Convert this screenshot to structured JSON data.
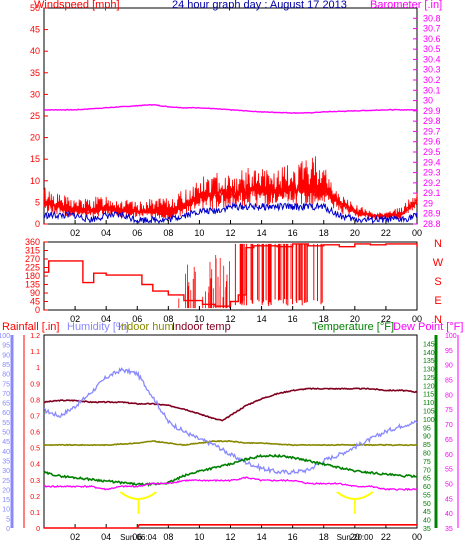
{
  "header": {
    "left": "Windspeed [mph]",
    "center": "24 hour graph day : August 17 2013",
    "right": "Barometer [.in]"
  },
  "colors": {
    "wind": "#ff0000",
    "gust": "#ff0000",
    "avg": "#0000cc",
    "baro": "#ff00ff",
    "dir": "#ff0000",
    "rain": "#ff0000",
    "hum": "#8888ff",
    "inhum": "#888800",
    "intemp": "#800020",
    "temp": "#008000",
    "dew": "#ff00ff",
    "sun": "#ffff00"
  },
  "chart_data": [
    {
      "type": "line",
      "name": "wind-barometer",
      "x_ticks": [
        "02",
        "04",
        "06",
        "08",
        "10",
        "12",
        "14",
        "16",
        "18",
        "20",
        "22",
        "00"
      ],
      "ylabel_left": "Windspeed [mph]",
      "ylim_left": [
        0,
        50
      ],
      "yticks_left": [
        0,
        5,
        10,
        15,
        20,
        25,
        30,
        35,
        40,
        45,
        50
      ],
      "ylabel_right": "Barometer [.in]",
      "ylim_right": [
        28.8,
        30.9
      ],
      "yticks_right": [
        "28.8",
        "28.9",
        "29",
        "29.1",
        "29.2",
        "29.3",
        "29.4",
        "29.5",
        "29.6",
        "29.7",
        "29.8",
        "29.9",
        "30",
        "30.1",
        "30.2",
        "30.3",
        "30.4",
        "30.5",
        "30.6",
        "30.7",
        "30.8"
      ],
      "barometer": {
        "x": [
          0,
          2,
          4,
          6,
          7,
          8,
          9,
          10,
          12,
          14,
          16,
          17,
          18,
          20,
          22,
          24
        ],
        "y": [
          29.91,
          29.91,
          29.93,
          29.95,
          29.96,
          29.94,
          29.93,
          29.93,
          29.91,
          29.89,
          29.88,
          29.88,
          29.89,
          29.9,
          29.91,
          29.91
        ]
      },
      "wind_gust_envelope": {
        "x": [
          0,
          1,
          2,
          3,
          4,
          5,
          6,
          7,
          8,
          9,
          10,
          11,
          12,
          13,
          14,
          15,
          16,
          17,
          17.5,
          18,
          19,
          20,
          21,
          22,
          23,
          24
        ],
        "y": [
          9,
          7,
          6,
          6,
          7,
          6,
          5,
          6,
          6,
          8,
          11,
          12,
          12,
          13,
          13,
          13,
          14,
          15,
          17,
          14,
          7,
          5,
          3,
          3,
          4,
          8
        ]
      },
      "wind_sustained": {
        "x": [
          0,
          1,
          2,
          3,
          4,
          5,
          6,
          7,
          8,
          9,
          10,
          11,
          12,
          13,
          14,
          15,
          16,
          17,
          18,
          19,
          20,
          21,
          22,
          23,
          24
        ],
        "y": [
          5,
          4,
          3,
          3,
          4,
          3,
          3,
          3,
          2,
          4,
          6,
          7,
          7,
          8,
          8,
          7,
          8,
          8,
          8,
          5,
          3,
          2,
          2,
          2,
          6
        ]
      },
      "wind_average": {
        "x": [
          0,
          1,
          2,
          3,
          4,
          5,
          6,
          7,
          8,
          9,
          10,
          11,
          12,
          13,
          14,
          15,
          16,
          17,
          18,
          19,
          20,
          21,
          22,
          23,
          24
        ],
        "y": [
          2,
          2,
          2,
          1,
          2,
          2,
          1,
          1,
          1,
          2,
          3,
          3,
          4,
          4,
          4,
          4,
          4,
          4,
          4,
          2,
          1,
          1,
          1,
          1,
          2
        ]
      }
    },
    {
      "type": "line",
      "name": "wind-direction",
      "ylim": [
        0,
        360
      ],
      "yticks": [
        0,
        45,
        90,
        135,
        180,
        225,
        270,
        315,
        360
      ],
      "compass": [
        "N",
        "W",
        "S",
        "E",
        "N"
      ],
      "x_ticks": [
        "02",
        "04",
        "06",
        "08",
        "10",
        "12",
        "14",
        "16",
        "18",
        "20",
        "22",
        "00"
      ],
      "direction": {
        "x": [
          0,
          0.3,
          0.8,
          2.4,
          2.5,
          3.1,
          3.2,
          3.9,
          4.0,
          6.2,
          6.3,
          6.8,
          7.0,
          8.0,
          9.0,
          10.2,
          11.0,
          11.6,
          12.0,
          12.5,
          13.0,
          13.5,
          14.0,
          15.0,
          16.0,
          17.0,
          18.0,
          19.0,
          20.0,
          21.0,
          22.0,
          23.0,
          24.0
        ],
        "y": [
          200,
          260,
          260,
          260,
          145,
          145,
          195,
          195,
          185,
          185,
          135,
          135,
          100,
          80,
          50,
          30,
          20,
          20,
          45,
          80,
          330,
          340,
          340,
          335,
          350,
          340,
          345,
          335,
          350,
          345,
          350,
          350,
          335
        ]
      }
    },
    {
      "type": "line",
      "name": "rain-humidity-temperature",
      "legend": [
        "Rainfall [.in]",
        "Humidity [%]",
        "Indoor hum",
        "Indoor temp",
        "Temperature [°F]",
        "Dew Point [°F]"
      ],
      "x_ticks": [
        "02",
        "04",
        "06",
        "08",
        "10",
        "12",
        "14",
        "16",
        "18",
        "20",
        "22",
        "00"
      ],
      "sun_labels": [
        "Sun 06:04",
        "Sun 20:00"
      ],
      "ylim_rain": [
        0,
        1.2
      ],
      "yticks_rain": [
        "0",
        "0.1",
        "0.2",
        "0.3",
        "0.4",
        "0.5",
        "0.6",
        "0.7",
        "0.8",
        "0.9",
        "1",
        "1.1",
        "1.2"
      ],
      "ylim_hum": [
        0,
        100
      ],
      "yticks_hum": [
        0,
        5,
        10,
        15,
        20,
        25,
        30,
        35,
        40,
        45,
        50,
        55,
        60,
        65,
        70,
        75,
        80,
        85,
        90,
        95,
        100
      ],
      "ylim_temp": [
        35,
        150
      ],
      "yticks_temp": [
        35,
        40,
        45,
        50,
        55,
        60,
        65,
        70,
        75,
        80,
        85,
        90,
        95,
        100,
        105,
        110,
        115,
        120,
        125,
        130,
        135,
        140,
        145
      ],
      "ylim_dew": [
        35,
        100
      ],
      "yticks_dew": [
        35,
        40,
        45,
        50,
        55,
        60,
        65,
        70,
        75,
        80,
        85,
        90,
        95,
        100
      ],
      "humidity": {
        "x": [
          0,
          1,
          2,
          3,
          4,
          5,
          6,
          7,
          8,
          9,
          10,
          11,
          12,
          13,
          14,
          15,
          16,
          17,
          18,
          19,
          20,
          21,
          22,
          23,
          24
        ],
        "y": [
          61,
          58,
          63,
          70,
          78,
          82,
          80,
          68,
          55,
          50,
          46,
          43,
          38,
          34,
          31,
          29,
          29,
          30,
          35,
          38,
          42,
          46,
          50,
          53,
          55
        ]
      },
      "indoor_hum": {
        "x": [
          0,
          2,
          4,
          6,
          7,
          8,
          9,
          10,
          11,
          12,
          13,
          14,
          16,
          18,
          20,
          22,
          24
        ],
        "y": [
          43,
          43,
          43,
          44,
          45,
          44,
          43,
          44,
          45,
          45,
          44,
          44,
          43,
          43,
          43,
          43,
          43
        ]
      },
      "indoor_temp": {
        "x": [
          0,
          1,
          2,
          3,
          4,
          5,
          6,
          7,
          8,
          9,
          10,
          11,
          11.5,
          12,
          13,
          14,
          15,
          16,
          17,
          18,
          19,
          20,
          21,
          22,
          23,
          24
        ],
        "y": [
          110,
          111,
          111,
          110,
          110,
          110,
          109,
          109,
          108,
          106,
          103,
          100,
          99,
          102,
          108,
          112,
          115,
          117,
          118,
          118,
          118,
          118,
          118,
          117,
          117,
          116
        ]
      },
      "temperature": {
        "x": [
          0,
          1,
          2,
          3,
          4,
          5,
          6,
          7,
          8,
          9,
          10,
          11,
          12,
          13,
          14,
          15,
          16,
          17,
          18,
          19,
          20,
          21,
          22,
          23,
          24
        ],
        "y": [
          68,
          66,
          65,
          64,
          63,
          62,
          61,
          61,
          62,
          66,
          69,
          71,
          73,
          76,
          78,
          78,
          77,
          75,
          73,
          71,
          69,
          68,
          67,
          66,
          66
        ]
      },
      "dew_point": {
        "x": [
          0,
          1,
          2,
          3,
          4,
          5,
          6,
          7,
          8,
          9,
          10,
          11,
          12,
          13,
          14,
          15,
          16,
          17,
          18,
          19,
          20,
          21,
          22,
          23,
          24
        ],
        "y": [
          49,
          49,
          49,
          49,
          48,
          49,
          49,
          50,
          50,
          51,
          51,
          51,
          51,
          52,
          51,
          51,
          51,
          50,
          50,
          50,
          49,
          49,
          48,
          48,
          48
        ]
      },
      "rainfall": {
        "x": [
          0,
          6,
          6.1,
          24
        ],
        "y": [
          0,
          0,
          0.02,
          0.02
        ]
      }
    }
  ]
}
